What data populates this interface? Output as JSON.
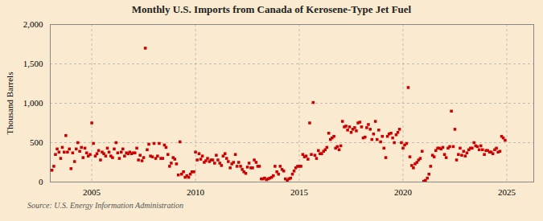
{
  "chart_data": {
    "type": "scatter",
    "title": "Monthly U.S. Imports from Canada of Kerosene-Type Jet Fuel",
    "ylabel": "Thousand Barrels",
    "annotations": [
      "Source: U.S. Energy Information Administration"
    ],
    "color": "#cc0000",
    "marker": "square",
    "grid": true,
    "xlim": [
      2003.0,
      2026.3
    ],
    "ylim": [
      0,
      2000
    ],
    "xticks": [
      2005,
      2010,
      2015,
      2020,
      2025
    ],
    "yticks": [
      0,
      500,
      {
        "value": 1000,
        "label": "1,000"
      },
      {
        "value": 1500,
        "label": "1,500"
      },
      {
        "value": 2000,
        "label": "2,000"
      }
    ],
    "x": [
      2003.08,
      2003.17,
      2003.25,
      2003.33,
      2003.42,
      2003.5,
      2003.58,
      2003.67,
      2003.75,
      2003.83,
      2003.92,
      2004.0,
      2004.08,
      2004.17,
      2004.25,
      2004.33,
      2004.42,
      2004.5,
      2004.58,
      2004.67,
      2004.75,
      2004.83,
      2004.92,
      2005.0,
      2005.08,
      2005.17,
      2005.25,
      2005.33,
      2005.42,
      2005.5,
      2005.58,
      2005.67,
      2005.75,
      2005.83,
      2005.92,
      2006.0,
      2006.08,
      2006.17,
      2006.25,
      2006.33,
      2006.42,
      2006.5,
      2006.58,
      2006.67,
      2006.75,
      2006.83,
      2006.92,
      2007.0,
      2007.08,
      2007.17,
      2007.25,
      2007.33,
      2007.42,
      2007.5,
      2007.58,
      2007.67,
      2007.75,
      2007.83,
      2007.92,
      2008.0,
      2008.08,
      2008.17,
      2008.25,
      2008.33,
      2008.42,
      2008.5,
      2008.58,
      2008.67,
      2008.75,
      2008.83,
      2008.92,
      2009.0,
      2009.08,
      2009.17,
      2009.25,
      2009.33,
      2009.42,
      2009.5,
      2009.58,
      2009.67,
      2009.75,
      2009.83,
      2009.92,
      2010.0,
      2010.08,
      2010.17,
      2010.25,
      2010.33,
      2010.42,
      2010.5,
      2010.58,
      2010.67,
      2010.75,
      2010.83,
      2010.92,
      2011.0,
      2011.08,
      2011.17,
      2011.25,
      2011.33,
      2011.42,
      2011.5,
      2011.58,
      2011.67,
      2011.75,
      2011.83,
      2011.92,
      2012.0,
      2012.08,
      2012.17,
      2012.25,
      2012.33,
      2012.42,
      2012.5,
      2012.58,
      2012.67,
      2012.75,
      2012.83,
      2012.92,
      2013.0,
      2013.08,
      2013.17,
      2013.25,
      2013.33,
      2013.42,
      2013.5,
      2013.58,
      2013.67,
      2013.75,
      2013.83,
      2013.92,
      2014.0,
      2014.08,
      2014.17,
      2014.25,
      2014.33,
      2014.42,
      2014.5,
      2014.58,
      2014.67,
      2014.75,
      2014.83,
      2014.92,
      2015.0,
      2015.08,
      2015.17,
      2015.25,
      2015.33,
      2015.42,
      2015.5,
      2015.58,
      2015.67,
      2015.75,
      2015.83,
      2015.92,
      2016.0,
      2016.08,
      2016.17,
      2016.25,
      2016.33,
      2016.42,
      2016.5,
      2016.58,
      2016.67,
      2016.75,
      2016.83,
      2016.92,
      2017.0,
      2017.08,
      2017.17,
      2017.25,
      2017.33,
      2017.42,
      2017.5,
      2017.58,
      2017.67,
      2017.75,
      2017.83,
      2017.92,
      2018.0,
      2018.08,
      2018.17,
      2018.25,
      2018.33,
      2018.42,
      2018.5,
      2018.58,
      2018.67,
      2018.75,
      2018.83,
      2018.92,
      2019.0,
      2019.08,
      2019.17,
      2019.25,
      2019.33,
      2019.42,
      2019.5,
      2019.58,
      2019.67,
      2019.75,
      2019.83,
      2019.92,
      2020.0,
      2020.08,
      2020.17,
      2020.25,
      2020.33,
      2020.42,
      2020.5,
      2020.58,
      2020.67,
      2020.75,
      2020.83,
      2020.92,
      2021.0,
      2021.08,
      2021.17,
      2021.25,
      2021.33,
      2021.42,
      2021.5,
      2021.58,
      2021.67,
      2021.75,
      2021.83,
      2021.92,
      2022.0,
      2022.08,
      2022.17,
      2022.25,
      2022.33,
      2022.42,
      2022.5,
      2022.58,
      2022.67,
      2022.75,
      2022.83,
      2022.92,
      2023.0,
      2023.08,
      2023.17,
      2023.25,
      2023.33,
      2023.42,
      2023.5,
      2023.58,
      2023.67,
      2023.75,
      2023.83,
      2023.92,
      2024.0,
      2024.08,
      2024.17,
      2024.25,
      2024.33,
      2024.42,
      2024.5,
      2024.58,
      2024.67,
      2024.75,
      2024.83,
      2024.92
    ],
    "values": [
      150,
      200,
      350,
      420,
      380,
      300,
      440,
      380,
      590,
      380,
      420,
      170,
      370,
      260,
      420,
      500,
      390,
      440,
      310,
      430,
      370,
      330,
      350,
      750,
      490,
      330,
      360,
      400,
      280,
      380,
      360,
      330,
      430,
      380,
      330,
      310,
      420,
      500,
      370,
      300,
      380,
      420,
      330,
      370,
      360,
      380,
      360,
      370,
      370,
      430,
      280,
      340,
      270,
      310,
      1700,
      410,
      480,
      330,
      320,
      490,
      300,
      330,
      490,
      300,
      300,
      470,
      440,
      350,
      200,
      240,
      310,
      290,
      230,
      90,
      510,
      100,
      130,
      60,
      80,
      60,
      100,
      130,
      130,
      380,
      280,
      360,
      290,
      330,
      250,
      270,
      300,
      260,
      280,
      280,
      240,
      340,
      280,
      240,
      210,
      330,
      360,
      300,
      260,
      180,
      230,
      250,
      350,
      200,
      250,
      200,
      160,
      130,
      110,
      190,
      240,
      180,
      180,
      280,
      250,
      200,
      200,
      40,
      40,
      50,
      30,
      40,
      50,
      60,
      80,
      200,
      130,
      100,
      200,
      160,
      140,
      40,
      20,
      40,
      50,
      100,
      140,
      180,
      200,
      200,
      200,
      350,
      320,
      330,
      290,
      750,
      350,
      1010,
      340,
      300,
      400,
      360,
      360,
      390,
      410,
      440,
      620,
      540,
      560,
      580,
      430,
      450,
      410,
      460,
      770,
      700,
      710,
      660,
      700,
      630,
      670,
      690,
      650,
      750,
      760,
      700,
      560,
      570,
      690,
      730,
      670,
      540,
      610,
      770,
      540,
      660,
      510,
      580,
      430,
      310,
      580,
      610,
      620,
      560,
      500,
      600,
      630,
      670,
      500,
      430,
      470,
      490,
      1200,
      320,
      210,
      180,
      230,
      250,
      280,
      300,
      390,
      10,
      20,
      50,
      100,
      200,
      340,
      320,
      400,
      430,
      430,
      420,
      440,
      350,
      310,
      430,
      450,
      900,
      450,
      670,
      280,
      350,
      430,
      340,
      390,
      330,
      370,
      410,
      430,
      430,
      500,
      460,
      450,
      410,
      460,
      410,
      350,
      400,
      400,
      380,
      380,
      360,
      410,
      430,
      380,
      390,
      580,
      560,
      530
    ]
  }
}
